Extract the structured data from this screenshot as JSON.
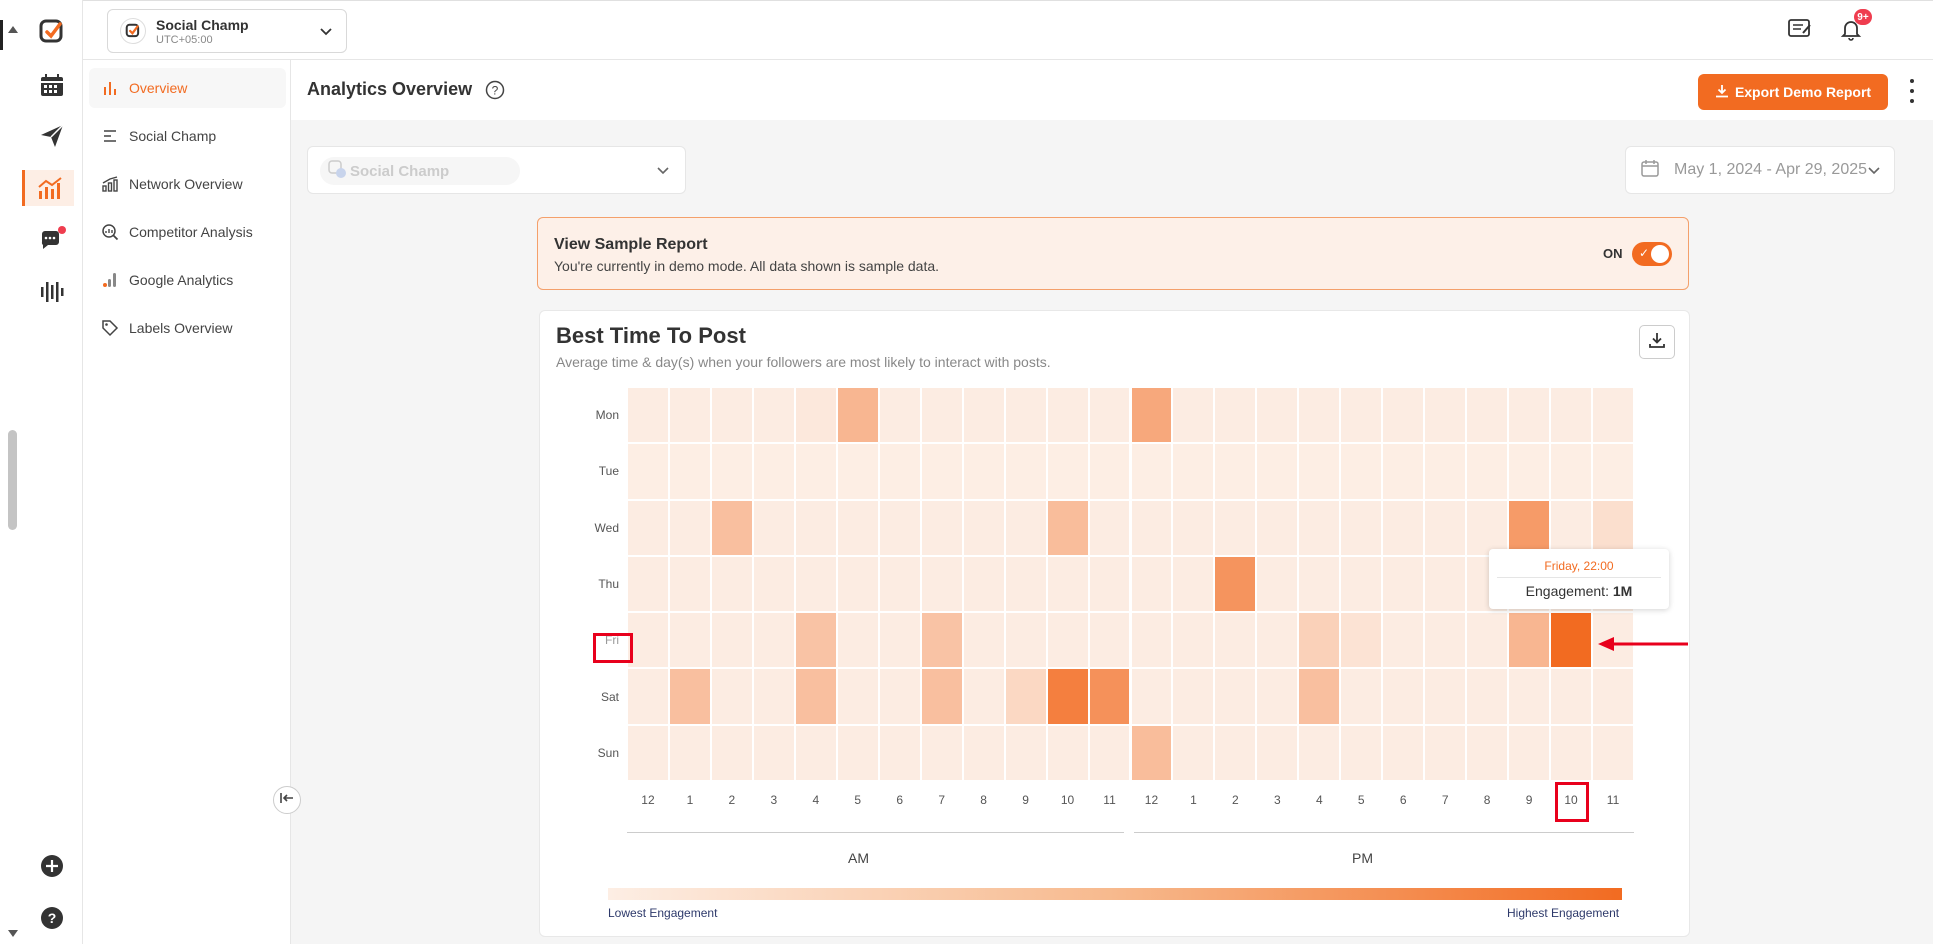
{
  "account": {
    "name": "Social Champ",
    "timezone": "UTC+05:00"
  },
  "notifications": {
    "count": "9+"
  },
  "subnav": [
    {
      "label": "Overview",
      "icon": "bar-chart-icon",
      "active": true
    },
    {
      "label": "Social Champ",
      "icon": "list-icon"
    },
    {
      "label": "Network Overview",
      "icon": "network-chart-icon"
    },
    {
      "label": "Competitor Analysis",
      "icon": "magnify-chart-icon"
    },
    {
      "label": "Google Analytics",
      "icon": "analytics-bars-icon"
    },
    {
      "label": "Labels Overview",
      "icon": "tag-icon"
    }
  ],
  "header": {
    "title": "Analytics Overview",
    "export_label": "Export Demo Report"
  },
  "filters": {
    "account": "Social Champ",
    "date_range": "May 1, 2024 - Apr 29, 2025"
  },
  "demo_banner": {
    "title": "View Sample Report",
    "subtitle": "You're currently in demo mode. All data shown is sample data.",
    "toggle_label": "ON"
  },
  "card": {
    "title": "Best Time To Post",
    "subtitle": "Average time & day(s) when your followers are most likely to interact with posts."
  },
  "chart_data": {
    "type": "heatmap",
    "title": "Best Time To Post",
    "rows": [
      "Mon",
      "Tue",
      "Wed",
      "Thu",
      "Fri",
      "Sat",
      "Sun"
    ],
    "columns": [
      "12",
      "1",
      "2",
      "3",
      "4",
      "5",
      "6",
      "7",
      "8",
      "9",
      "10",
      "11",
      "12",
      "1",
      "2",
      "3",
      "4",
      "5",
      "6",
      "7",
      "8",
      "9",
      "10",
      "11"
    ],
    "column_groups": [
      "AM",
      "PM"
    ],
    "values": [
      [
        0.05,
        0.05,
        0.05,
        0.05,
        0.08,
        0.45,
        0.05,
        0.05,
        0.05,
        0.05,
        0.05,
        0.05,
        0.55,
        0.05,
        0.05,
        0.05,
        0.05,
        0.05,
        0.05,
        0.05,
        0.05,
        0.05,
        0.05,
        0.05
      ],
      [
        0.04,
        0.04,
        0.04,
        0.04,
        0.04,
        0.04,
        0.04,
        0.04,
        0.04,
        0.04,
        0.04,
        0.04,
        0.04,
        0.04,
        0.04,
        0.04,
        0.04,
        0.04,
        0.04,
        0.04,
        0.04,
        0.04,
        0.04,
        0.04
      ],
      [
        0.05,
        0.05,
        0.38,
        0.05,
        0.05,
        0.05,
        0.05,
        0.05,
        0.05,
        0.05,
        0.4,
        0.05,
        0.05,
        0.05,
        0.05,
        0.05,
        0.05,
        0.05,
        0.05,
        0.05,
        0.05,
        0.65,
        0.05,
        0.15
      ],
      [
        0.05,
        0.05,
        0.05,
        0.05,
        0.05,
        0.05,
        0.05,
        0.05,
        0.05,
        0.05,
        0.05,
        0.05,
        0.05,
        0.05,
        0.7,
        0.05,
        0.05,
        0.05,
        0.05,
        0.05,
        0.05,
        0.05,
        0.05,
        0.05
      ],
      [
        0.05,
        0.05,
        0.05,
        0.05,
        0.35,
        0.05,
        0.05,
        0.35,
        0.05,
        0.05,
        0.05,
        0.05,
        0.05,
        0.05,
        0.05,
        0.05,
        0.25,
        0.12,
        0.05,
        0.05,
        0.05,
        0.45,
        1.0,
        0.05
      ],
      [
        0.05,
        0.38,
        0.05,
        0.05,
        0.38,
        0.05,
        0.05,
        0.38,
        0.05,
        0.2,
        0.85,
        0.72,
        0.05,
        0.05,
        0.05,
        0.05,
        0.38,
        0.05,
        0.05,
        0.05,
        0.05,
        0.05,
        0.05,
        0.05
      ],
      [
        0.05,
        0.05,
        0.05,
        0.05,
        0.05,
        0.05,
        0.05,
        0.05,
        0.05,
        0.05,
        0.05,
        0.05,
        0.4,
        0.05,
        0.05,
        0.05,
        0.05,
        0.05,
        0.05,
        0.05,
        0.05,
        0.05,
        0.05,
        0.05
      ]
    ],
    "legend": {
      "low": "Lowest Engagement",
      "high": "Highest Engagement"
    },
    "tooltip": {
      "heading": "Friday, 22:00",
      "label": "Engagement:",
      "value": "1M"
    },
    "colors": {
      "low": "#fdf3ec",
      "high": "#f26b21"
    }
  }
}
